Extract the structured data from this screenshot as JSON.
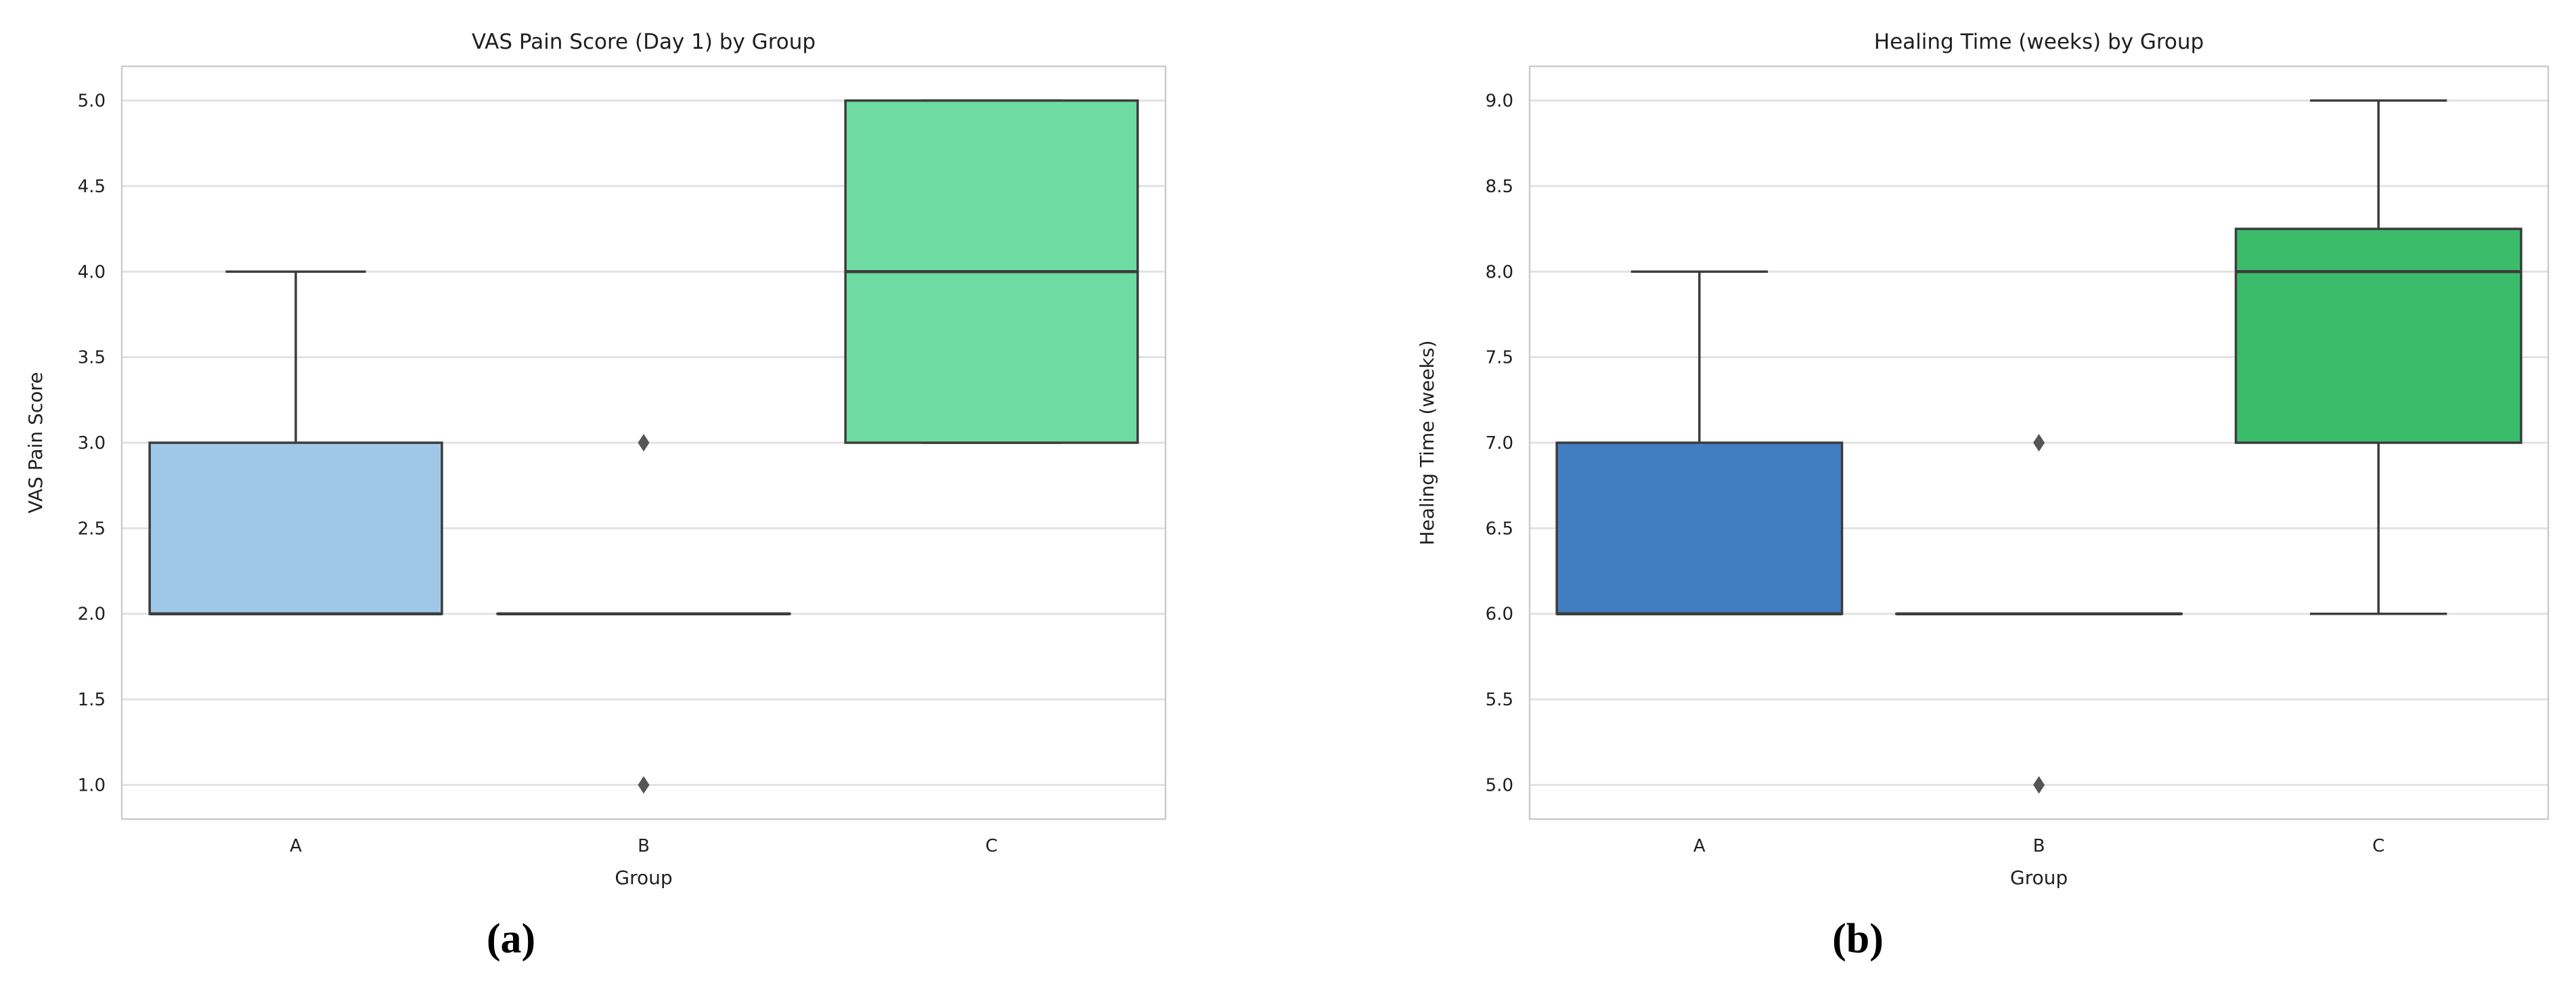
{
  "figure": {
    "background": "#ffffff",
    "captions": {
      "a": "(a)",
      "b": "(b)"
    }
  },
  "style_colors": {
    "box_edge": "#3c3c3c",
    "median_line": "#3c3c3c",
    "whisker": "#3c3c3c",
    "outlier_fill": "#555555",
    "gridline": "#e2e2e2",
    "spine": "#cccccc",
    "text": "#1f1f1f"
  },
  "chart_data": [
    {
      "type": "box",
      "title": "VAS Pain Score (Day 1) by Group",
      "xlabel": "Group",
      "ylabel": "VAS Pain Score",
      "caption": "(a)",
      "categories": [
        "A",
        "B",
        "C"
      ],
      "ylim": [
        0.8,
        5.2
      ],
      "yticks": [
        1.0,
        1.5,
        2.0,
        2.5,
        3.0,
        3.5,
        4.0,
        4.5,
        5.0
      ],
      "grid": "horizontal",
      "legend": "none",
      "boxes": [
        {
          "group": "A",
          "whislo": 2.0,
          "q1": 2.0,
          "median": 2.0,
          "q3": 3.0,
          "whishi": 4.0,
          "outliers": [],
          "color": "#9fc8e8"
        },
        {
          "group": "B",
          "whislo": 2.0,
          "q1": 2.0,
          "median": 2.0,
          "q3": 2.0,
          "whishi": 2.0,
          "outliers": [
            3.0,
            1.0
          ]
        },
        {
          "group": "C",
          "whislo": 3.0,
          "q1": 3.0,
          "median": 4.0,
          "q3": 5.0,
          "whishi": 5.0,
          "outliers": [],
          "color": "#6edba2"
        }
      ]
    },
    {
      "type": "box",
      "title": "Healing Time (weeks) by Group",
      "xlabel": "Group",
      "ylabel": "Healing Time (weeks)",
      "caption": "(b)",
      "categories": [
        "A",
        "B",
        "C"
      ],
      "ylim": [
        4.8,
        9.2
      ],
      "yticks": [
        5.0,
        5.5,
        6.0,
        6.5,
        7.0,
        7.5,
        8.0,
        8.5,
        9.0
      ],
      "grid": "horizontal",
      "legend": "none",
      "boxes": [
        {
          "group": "A",
          "whislo": 6.0,
          "q1": 6.0,
          "median": 6.0,
          "q3": 7.0,
          "whishi": 8.0,
          "outliers": [],
          "color": "#437dc1"
        },
        {
          "group": "B",
          "whislo": 6.0,
          "q1": 6.0,
          "median": 6.0,
          "q3": 6.0,
          "whishi": 6.0,
          "outliers": [
            7.0,
            5.0
          ]
        },
        {
          "group": "C",
          "whislo": 6.0,
          "q1": 7.0,
          "median": 8.0,
          "q3": 8.25,
          "whishi": 9.0,
          "outliers": [],
          "color": "#3abc6a"
        }
      ]
    }
  ]
}
